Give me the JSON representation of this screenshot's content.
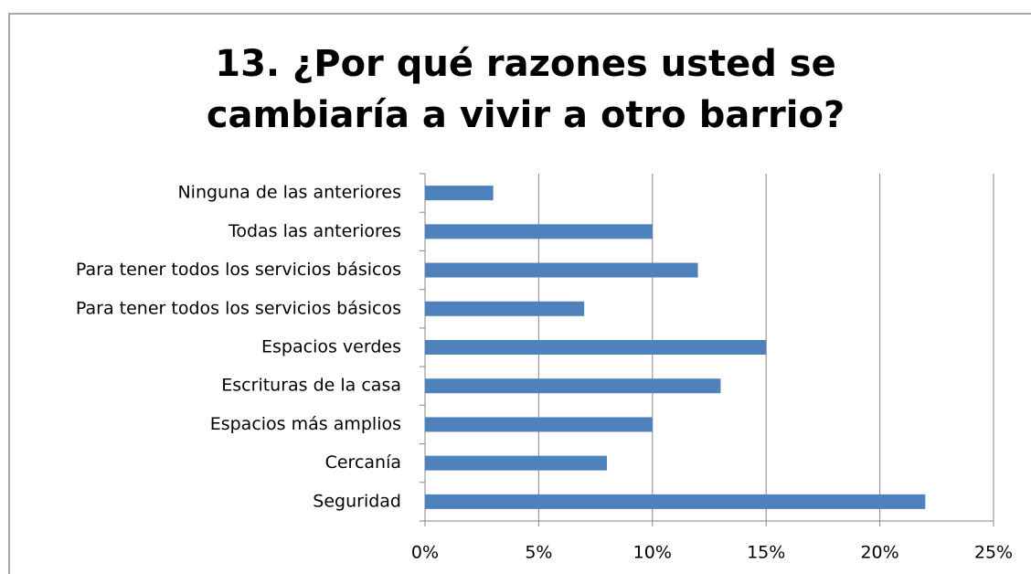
{
  "chart_data": {
    "type": "bar",
    "orientation": "horizontal",
    "title": "13. ¿Por qué razones usted se cambiaría a vivir a otro barrio?",
    "categories": [
      "Ninguna de las anteriores",
      "Todas las anteriores",
      "Para tener todos los servicios básicos",
      "Para tener todos los servicios básicos",
      "Espacios verdes",
      "Escrituras de la casa",
      "Espacios más amplios",
      "Cercanía",
      "Seguridad"
    ],
    "values": [
      3,
      10,
      12,
      7,
      15,
      13,
      10,
      8,
      22
    ],
    "color": "#4f81bd",
    "xlim": [
      0,
      25
    ],
    "xticks": [
      {
        "value": 0,
        "label": "0%"
      },
      {
        "value": 5,
        "label": "5%"
      },
      {
        "value": 10,
        "label": "10%"
      },
      {
        "value": 15,
        "label": "15%"
      },
      {
        "value": 20,
        "label": "20%"
      },
      {
        "value": 25,
        "label": "25%"
      }
    ],
    "grid": true
  }
}
